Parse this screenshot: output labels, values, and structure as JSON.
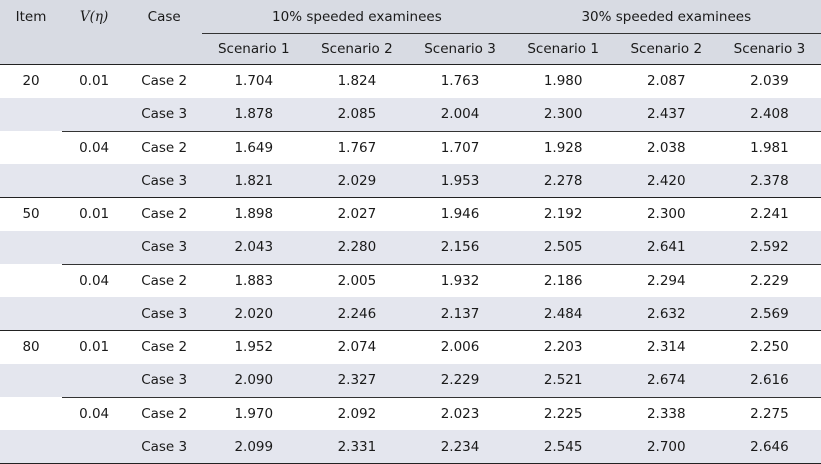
{
  "header": {
    "item": "Item",
    "v_label_main": "V",
    "v_label_arg": "(η)",
    "case": "Case",
    "group_10": "10% speeded examinees",
    "group_30": "30% speeded examinees",
    "scenarios": [
      "Scenario 1",
      "Scenario 2",
      "Scenario 3",
      "Scenario 1",
      "Scenario 2",
      "Scenario 3"
    ]
  },
  "rows": [
    {
      "item": "20",
      "v": "0.01",
      "case": "Case 2",
      "vals": [
        "1.704",
        "1.824",
        "1.763",
        "1.980",
        "2.087",
        "2.039"
      ]
    },
    {
      "item": "",
      "v": "",
      "case": "Case 3",
      "vals": [
        "1.878",
        "2.085",
        "2.004",
        "2.300",
        "2.437",
        "2.408"
      ]
    },
    {
      "item": "",
      "v": "0.04",
      "case": "Case 2",
      "vals": [
        "1.649",
        "1.767",
        "1.707",
        "1.928",
        "2.038",
        "1.981"
      ]
    },
    {
      "item": "",
      "v": "",
      "case": "Case 3",
      "vals": [
        "1.821",
        "2.029",
        "1.953",
        "2.278",
        "2.420",
        "2.378"
      ]
    },
    {
      "item": "50",
      "v": "0.01",
      "case": "Case 2",
      "vals": [
        "1.898",
        "2.027",
        "1.946",
        "2.192",
        "2.300",
        "2.241"
      ]
    },
    {
      "item": "",
      "v": "",
      "case": "Case 3",
      "vals": [
        "2.043",
        "2.280",
        "2.156",
        "2.505",
        "2.641",
        "2.592"
      ]
    },
    {
      "item": "",
      "v": "0.04",
      "case": "Case 2",
      "vals": [
        "1.883",
        "2.005",
        "1.932",
        "2.186",
        "2.294",
        "2.229"
      ]
    },
    {
      "item": "",
      "v": "",
      "case": "Case 3",
      "vals": [
        "2.020",
        "2.246",
        "2.137",
        "2.484",
        "2.632",
        "2.569"
      ]
    },
    {
      "item": "80",
      "v": "0.01",
      "case": "Case 2",
      "vals": [
        "1.952",
        "2.074",
        "2.006",
        "2.203",
        "2.314",
        "2.250"
      ]
    },
    {
      "item": "",
      "v": "",
      "case": "Case 3",
      "vals": [
        "2.090",
        "2.327",
        "2.229",
        "2.521",
        "2.674",
        "2.616"
      ]
    },
    {
      "item": "",
      "v": "0.04",
      "case": "Case 2",
      "vals": [
        "1.970",
        "2.092",
        "2.023",
        "2.225",
        "2.338",
        "2.275"
      ]
    },
    {
      "item": "",
      "v": "",
      "case": "Case 3",
      "vals": [
        "2.099",
        "2.331",
        "2.234",
        "2.545",
        "2.700",
        "2.646"
      ]
    }
  ]
}
